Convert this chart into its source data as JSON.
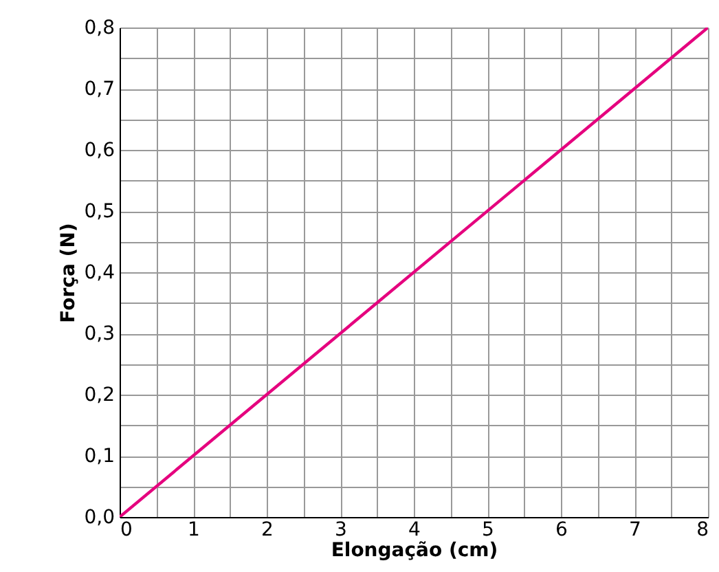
{
  "chart_data": {
    "type": "line",
    "xlabel": "Elongação (cm)",
    "ylabel": "Força (N)",
    "x": [
      0,
      8
    ],
    "series": [
      {
        "color": "#e5007e",
        "values": [
          0,
          0.8
        ]
      }
    ],
    "xlim": [
      0,
      8
    ],
    "ylim": [
      0,
      0.8
    ],
    "xticks": [
      0,
      {
        "value": 0.5,
        "label": null
      },
      1,
      {
        "value": 1.5,
        "label": null
      },
      2,
      {
        "value": 2.5,
        "label": null
      },
      3,
      {
        "value": 3.5,
        "label": null
      },
      4,
      {
        "value": 4.5,
        "label": null
      },
      5,
      {
        "value": 5.5,
        "label": null
      },
      6,
      {
        "value": 6.5,
        "label": null
      },
      7,
      {
        "value": 7.5,
        "label": null
      },
      8
    ],
    "yticks": [
      {
        "value": 0,
        "label": "0,0"
      },
      {
        "value": 0.05,
        "label": null
      },
      {
        "value": 0.1,
        "label": "0,1"
      },
      {
        "value": 0.15,
        "label": null
      },
      {
        "value": 0.2,
        "label": "0,2"
      },
      {
        "value": 0.25,
        "label": null
      },
      {
        "value": 0.3,
        "label": "0,3"
      },
      {
        "value": 0.35,
        "label": null
      },
      {
        "value": 0.4,
        "label": "0,4"
      },
      {
        "value": 0.45,
        "label": null
      },
      {
        "value": 0.5,
        "label": "0,5"
      },
      {
        "value": 0.55,
        "label": null
      },
      {
        "value": 0.6,
        "label": "0,6"
      },
      {
        "value": 0.65,
        "label": null
      },
      {
        "value": 0.7,
        "label": "0,7"
      },
      {
        "value": 0.75,
        "label": null
      },
      {
        "value": 0.8,
        "label": "0,8"
      }
    ],
    "grid": true,
    "marker": "none",
    "line_style": "solid"
  }
}
